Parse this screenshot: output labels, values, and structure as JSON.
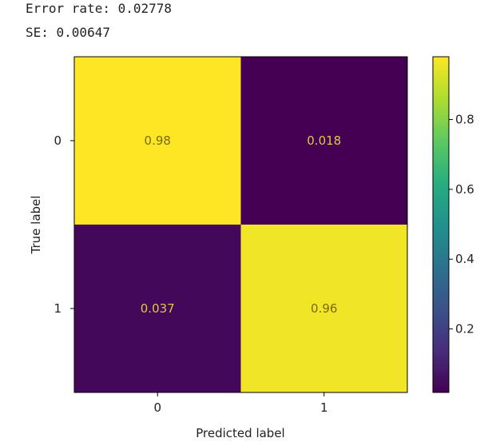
{
  "output": {
    "error_rate_line": "Error rate: 0.02778",
    "se_line": "SE: 0.00647"
  },
  "chart_data": {
    "type": "heatmap",
    "title": "",
    "xlabel": "Predicted label",
    "ylabel": "True label",
    "x_ticks": [
      "0",
      "1"
    ],
    "y_ticks": [
      "0",
      "1"
    ],
    "values": [
      [
        0.98,
        0.018
      ],
      [
        0.037,
        0.96
      ]
    ],
    "value_labels": [
      [
        "0.98",
        "0.018"
      ],
      [
        "0.037",
        "0.96"
      ]
    ],
    "colormap": "viridis",
    "colorbar": {
      "range": [
        0.018,
        0.98
      ],
      "ticks": [
        0.2,
        0.4,
        0.6,
        0.8
      ],
      "tick_labels": [
        "0.2",
        "0.4",
        "0.6",
        "0.8"
      ]
    },
    "colors": {
      "high": "#fde725",
      "low": "#440154",
      "text_on_high": "#7a6a10",
      "text_on_low": "#e0c840"
    }
  }
}
